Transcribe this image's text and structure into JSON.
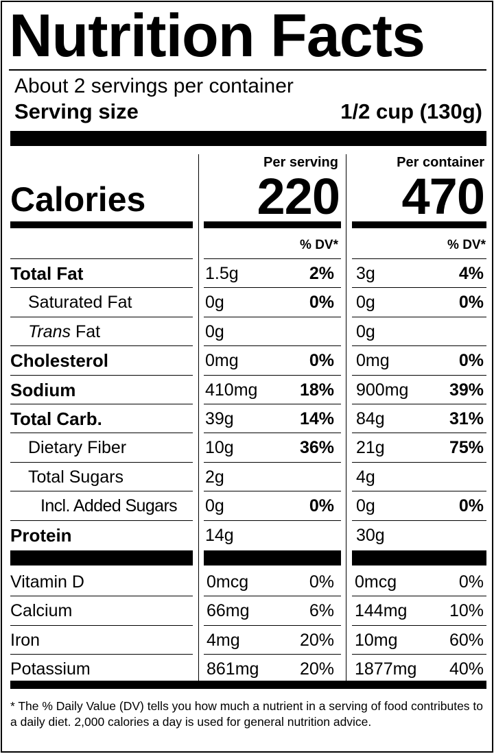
{
  "title": "Nutrition Facts",
  "servings_per_container": "About 2 servings per container",
  "serving_size": {
    "label": "Serving size",
    "value": "1/2 cup (130g)"
  },
  "columns": {
    "per_serving": "Per serving",
    "per_container": "Per container"
  },
  "calories": {
    "label": "Calories",
    "per_serving": "220",
    "per_container": "470"
  },
  "dv_header": "% DV*",
  "nutrients": [
    {
      "label": "Total Fat",
      "serving_amount": "1.5g",
      "serving_dv": "2%",
      "container_amount": "3g",
      "container_dv": "4%"
    },
    {
      "label": "Saturated Fat",
      "serving_amount": "0g",
      "serving_dv": "0%",
      "container_amount": "0g",
      "container_dv": "0%"
    },
    {
      "label_italic": "Trans",
      "label_rest": " Fat",
      "serving_amount": "0g",
      "serving_dv": "",
      "container_amount": "0g",
      "container_dv": ""
    },
    {
      "label": "Cholesterol",
      "serving_amount": "0mg",
      "serving_dv": "0%",
      "container_amount": "0mg",
      "container_dv": "0%"
    },
    {
      "label": "Sodium",
      "serving_amount": "410mg",
      "serving_dv": "18%",
      "container_amount": "900mg",
      "container_dv": "39%"
    },
    {
      "label": "Total Carb.",
      "serving_amount": "39g",
      "serving_dv": "14%",
      "container_amount": "84g",
      "container_dv": "31%"
    },
    {
      "label": "Dietary Fiber",
      "serving_amount": "10g",
      "serving_dv": "36%",
      "container_amount": "21g",
      "container_dv": "75%"
    },
    {
      "label": "Total Sugars",
      "serving_amount": "2g",
      "serving_dv": "",
      "container_amount": "4g",
      "container_dv": ""
    },
    {
      "label": "Incl. Added Sugars",
      "serving_amount": "0g",
      "serving_dv": "0%",
      "container_amount": "0g",
      "container_dv": "0%"
    },
    {
      "label": "Protein",
      "serving_amount": "14g",
      "serving_dv": "",
      "container_amount": "30g",
      "container_dv": ""
    }
  ],
  "vitamins": [
    {
      "label": "Vitamin D",
      "serving_amount": "0mcg",
      "serving_dv": "0%",
      "container_amount": "0mcg",
      "container_dv": "0%"
    },
    {
      "label": "Calcium",
      "serving_amount": "66mg",
      "serving_dv": "6%",
      "container_amount": "144mg",
      "container_dv": "10%"
    },
    {
      "label": "Iron",
      "serving_amount": "4mg",
      "serving_dv": "20%",
      "container_amount": "10mg",
      "container_dv": "60%"
    },
    {
      "label": "Potassium",
      "serving_amount": "861mg",
      "serving_dv": "20%",
      "container_amount": "1877mg",
      "container_dv": "40%"
    }
  ],
  "footnote": "* The % Daily Value (DV) tells you how much a nutrient in a serving of food contributes to a daily diet. 2,000 calories a day is used for general nutrition advice."
}
